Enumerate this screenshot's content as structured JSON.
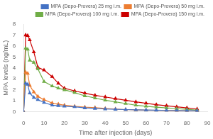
{
  "chart_data": {
    "type": "line",
    "xlabel": "Time after injection (days)",
    "ylabel": "MPA levels (ng/mL)",
    "x": [
      0,
      1,
      2,
      3,
      5,
      7,
      10,
      14,
      17,
      20,
      25,
      30,
      35,
      40,
      45,
      50,
      55,
      60,
      65,
      70,
      75,
      80,
      85
    ],
    "series": [
      {
        "name": "MPA (Depo-Provera) 25 mg i.m.",
        "color": "#4472C4",
        "marker": "triangle",
        "values": [
          0.0,
          2.6,
          2.5,
          1.7,
          1.3,
          1.1,
          0.85,
          0.6,
          0.55,
          0.5,
          0.45,
          0.35,
          0.3,
          0.25,
          0.22,
          0.2,
          0.18,
          0.16,
          0.14,
          0.12,
          0.11,
          0.1,
          0.09
        ]
      },
      {
        "name": "MPA (Depo-Provera) 50 mg i.m.",
        "color": "#ED7D31",
        "marker": "triangle",
        "values": [
          0.0,
          3.6,
          3.5,
          2.4,
          1.8,
          1.4,
          1.1,
          0.8,
          0.7,
          0.6,
          0.5,
          0.42,
          0.38,
          0.3,
          0.25,
          0.2,
          0.17,
          0.15,
          0.13,
          0.11,
          0.1,
          0.08,
          0.07
        ]
      },
      {
        "name": "MPA (Depo-Provera) 100 mg i.m.",
        "color": "#70AD47",
        "marker": "triangle",
        "values": [
          0.0,
          5.8,
          5.7,
          4.7,
          4.5,
          3.9,
          2.75,
          2.35,
          2.15,
          2.0,
          1.75,
          1.45,
          1.25,
          1.05,
          0.9,
          0.75,
          0.6,
          0.5,
          0.42,
          0.35,
          0.28,
          0.22,
          0.15
        ]
      },
      {
        "name": "MPA (Depo-Provera) 150 mg i.m.",
        "color": "#CC0000",
        "marker": "triangle",
        "values": [
          0.0,
          7.0,
          6.95,
          6.55,
          5.45,
          4.05,
          3.8,
          3.2,
          2.6,
          2.15,
          1.9,
          1.7,
          1.5,
          1.35,
          1.2,
          1.05,
          0.9,
          0.78,
          0.65,
          0.55,
          0.45,
          0.35,
          0.25
        ]
      }
    ],
    "xlim": [
      0,
      90
    ],
    "xticks": [
      0,
      10,
      20,
      30,
      40,
      50,
      60,
      70,
      80,
      90
    ],
    "ylim": [
      0,
      8
    ],
    "yticks": [
      0,
      1,
      2,
      3,
      4,
      5,
      6,
      7,
      8
    ],
    "grid": false,
    "legend": "upper right"
  }
}
